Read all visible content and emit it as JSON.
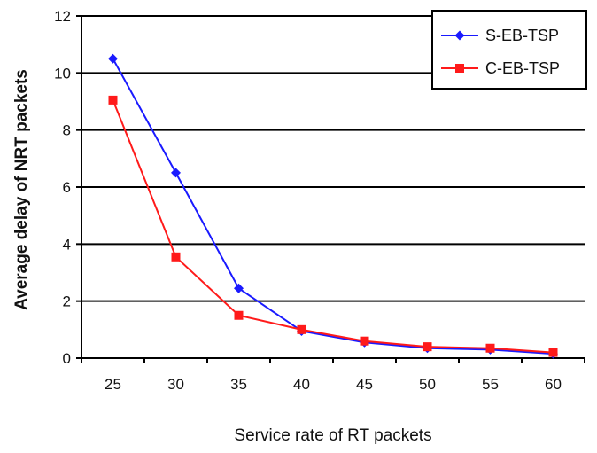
{
  "chart_data": {
    "type": "line",
    "title": "",
    "xlabel": "Service rate of RT packets",
    "ylabel": "Average delay of NRT packets",
    "categories": [
      "25",
      "30",
      "35",
      "40",
      "45",
      "50",
      "55",
      "60"
    ],
    "ylim": [
      0,
      12
    ],
    "yticks": [
      "0",
      "2",
      "4",
      "6",
      "8",
      "10",
      "12"
    ],
    "grid": true,
    "legend_position": "top-right",
    "series": [
      {
        "name": "S-EB-TSP",
        "color": "#1a1aff",
        "marker": "diamond",
        "values": [
          10.5,
          6.5,
          2.45,
          0.95,
          0.55,
          0.35,
          0.3,
          0.15
        ]
      },
      {
        "name": "C-EB-TSP",
        "color": "#ff1a1a",
        "marker": "square",
        "values": [
          9.05,
          3.55,
          1.5,
          1.0,
          0.6,
          0.4,
          0.35,
          0.2
        ]
      }
    ]
  }
}
